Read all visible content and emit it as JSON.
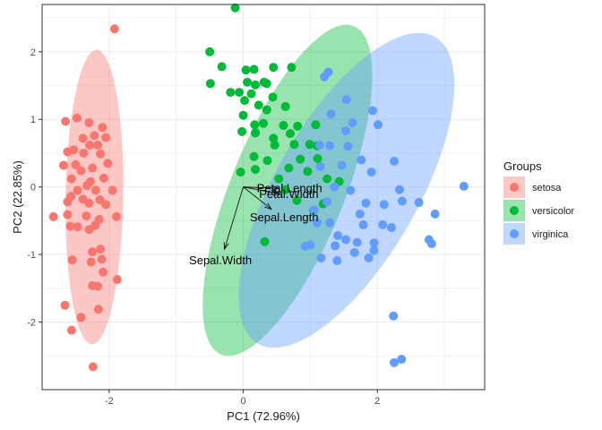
{
  "chart_data": {
    "type": "scatter",
    "xlabel": "PC1 (72.96%)",
    "ylabel": "PC2 (22.85%)",
    "xlim": [
      -3.0,
      3.6
    ],
    "ylim": [
      -3.0,
      2.7
    ],
    "xticks": [
      -2,
      0,
      2
    ],
    "yticks": [
      -2,
      -1,
      0,
      1,
      2
    ],
    "grid": true,
    "legend": {
      "title": "Groups",
      "placement": "right"
    },
    "series": [
      {
        "name": "setosa",
        "color": "#F8766D",
        "ellipse": {
          "cx": -2.22,
          "cy": -0.15,
          "rx": 0.43,
          "ry": 2.18,
          "angle": 0.9
        },
        "points": [
          [
            -1.92,
            2.34
          ],
          [
            -2.48,
            1.02
          ],
          [
            -2.65,
            0.97
          ],
          [
            -2.3,
            0.95
          ],
          [
            -2.1,
            0.88
          ],
          [
            -2.22,
            0.76
          ],
          [
            -2.39,
            0.72
          ],
          [
            -2.05,
            0.73
          ],
          [
            -2.17,
            0.62
          ],
          [
            -2.29,
            0.62
          ],
          [
            -2.53,
            0.55
          ],
          [
            -2.38,
            0.5
          ],
          [
            -2.62,
            0.52
          ],
          [
            -2.13,
            0.49
          ],
          [
            -2.68,
            0.32
          ],
          [
            -2.5,
            0.33
          ],
          [
            -2.02,
            0.35
          ],
          [
            -2.25,
            0.28
          ],
          [
            -2.42,
            0.24
          ],
          [
            -2.56,
            0.12
          ],
          [
            -2.08,
            0.13
          ],
          [
            -2.28,
            0.08
          ],
          [
            -2.33,
            0.02
          ],
          [
            -2.47,
            -0.05
          ],
          [
            -2.2,
            -0.05
          ],
          [
            -1.95,
            -0.05
          ],
          [
            -2.57,
            -0.14
          ],
          [
            -2.39,
            -0.18
          ],
          [
            -2.14,
            -0.19
          ],
          [
            -2.62,
            -0.22
          ],
          [
            -2.3,
            -0.24
          ],
          [
            -2.05,
            -0.26
          ],
          [
            -2.83,
            -0.44
          ],
          [
            -2.62,
            -0.41
          ],
          [
            -2.34,
            -0.43
          ],
          [
            -2.15,
            -0.48
          ],
          [
            -1.89,
            -0.44
          ],
          [
            -2.47,
            -0.59
          ],
          [
            -2.58,
            -0.58
          ],
          [
            -2.21,
            -0.57
          ],
          [
            -2.3,
            -0.63
          ],
          [
            -2.13,
            -0.92
          ],
          [
            -2.25,
            -0.96
          ],
          [
            -2.11,
            -1.07
          ],
          [
            -2.55,
            -1.08
          ],
          [
            -2.27,
            -1.11
          ],
          [
            -2.09,
            -1.26
          ],
          [
            -1.88,
            -1.37
          ],
          [
            -2.25,
            -1.46
          ],
          [
            -2.17,
            -1.47
          ],
          [
            -2.66,
            -1.75
          ],
          [
            -2.16,
            -1.81
          ],
          [
            -2.42,
            -1.93
          ],
          [
            -2.56,
            -2.12
          ],
          [
            -2.24,
            -2.66
          ]
        ]
      },
      {
        "name": "versicolor",
        "color": "#00BA38",
        "ellipse": {
          "cx": 0.66,
          "cy": -0.05,
          "rx": 0.85,
          "ry": 2.62,
          "angle": 22
        },
        "points": [
          [
            -0.12,
            2.65
          ],
          [
            -0.5,
            2.0
          ],
          [
            -0.32,
            1.78
          ],
          [
            0.04,
            1.73
          ],
          [
            0.16,
            1.74
          ],
          [
            0.45,
            1.77
          ],
          [
            0.72,
            1.77
          ],
          [
            -0.49,
            1.53
          ],
          [
            0.06,
            1.55
          ],
          [
            0.31,
            1.55
          ],
          [
            -0.19,
            1.4
          ],
          [
            -0.06,
            1.4
          ],
          [
            0.12,
            1.38
          ],
          [
            0.18,
            1.51
          ],
          [
            0.35,
            1.53
          ],
          [
            0.02,
            1.28
          ],
          [
            0.23,
            1.21
          ],
          [
            0.44,
            1.33
          ],
          [
            0.35,
            1.14
          ],
          [
            0.63,
            1.19
          ],
          [
            0.0,
            1.06
          ],
          [
            0.17,
            0.92
          ],
          [
            0.3,
            0.94
          ],
          [
            0.6,
            0.91
          ],
          [
            0.81,
            0.9
          ],
          [
            1.08,
            0.92
          ],
          [
            0.18,
            0.8
          ],
          [
            0.45,
            0.72
          ],
          [
            0.7,
            0.79
          ],
          [
            -0.02,
            0.82
          ],
          [
            0.47,
            0.62
          ],
          [
            0.76,
            0.63
          ],
          [
            0.99,
            0.63
          ],
          [
            1.1,
            0.61
          ],
          [
            0.16,
            0.45
          ],
          [
            0.36,
            0.39
          ],
          [
            0.85,
            0.41
          ],
          [
            1.11,
            0.42
          ],
          [
            -0.04,
            0.22
          ],
          [
            0.18,
            0.26
          ],
          [
            0.68,
            0.28
          ],
          [
            0.96,
            0.23
          ],
          [
            0.53,
            0.12
          ],
          [
            0.63,
            -0.04
          ],
          [
            1.25,
            0.12
          ],
          [
            1.43,
            0.08
          ],
          [
            0.8,
            -0.2
          ],
          [
            1.19,
            -0.25
          ],
          [
            1.05,
            -0.35
          ],
          [
            0.32,
            -0.81
          ]
        ]
      },
      {
        "name": "virginica",
        "color": "#619CFF",
        "ellipse": {
          "cx": 1.54,
          "cy": -0.05,
          "rx": 1.06,
          "ry": 2.62,
          "angle": 30
        },
        "points": [
          [
            1.27,
            1.7
          ],
          [
            1.21,
            1.63
          ],
          [
            1.54,
            1.29
          ],
          [
            1.93,
            1.13
          ],
          [
            1.31,
            1.08
          ],
          [
            1.63,
            0.95
          ],
          [
            2.01,
            0.92
          ],
          [
            1.53,
            0.83
          ],
          [
            1.14,
            0.62
          ],
          [
            1.56,
            0.6
          ],
          [
            1.29,
            0.61
          ],
          [
            1.76,
            0.4
          ],
          [
            1.91,
            0.22
          ],
          [
            1.15,
            0.3
          ],
          [
            1.47,
            0.32
          ],
          [
            2.25,
            0.38
          ],
          [
            3.29,
            0.01
          ],
          [
            1.36,
            0.0
          ],
          [
            1.6,
            -0.05
          ],
          [
            2.33,
            -0.04
          ],
          [
            1.25,
            -0.22
          ],
          [
            1.83,
            -0.24
          ],
          [
            2.37,
            -0.21
          ],
          [
            2.1,
            -0.26
          ],
          [
            2.62,
            -0.23
          ],
          [
            2.86,
            -0.4
          ],
          [
            1.06,
            -0.34
          ],
          [
            1.74,
            -0.4
          ],
          [
            1.29,
            -0.53
          ],
          [
            1.1,
            -0.53
          ],
          [
            1.79,
            -0.56
          ],
          [
            2.08,
            -0.56
          ],
          [
            2.21,
            -0.6
          ],
          [
            1.41,
            -0.72
          ],
          [
            1.53,
            -0.78
          ],
          [
            1.7,
            -0.82
          ],
          [
            1.95,
            -0.83
          ],
          [
            2.77,
            -0.78
          ],
          [
            2.81,
            -0.84
          ],
          [
            1.0,
            -0.86
          ],
          [
            1.37,
            -0.87
          ],
          [
            1.66,
            -0.97
          ],
          [
            1.95,
            -0.94
          ],
          [
            1.16,
            -1.05
          ],
          [
            1.4,
            -1.09
          ],
          [
            1.87,
            -1.05
          ],
          [
            2.24,
            -1.91
          ],
          [
            2.25,
            -2.6
          ],
          [
            2.36,
            -2.55
          ],
          [
            0.92,
            -0.88
          ]
        ]
      }
    ],
    "arrows": [
      {
        "label": "Petal.Length",
        "x": 0.52,
        "y": -0.02
      },
      {
        "label": "Petal.Width",
        "x": 0.54,
        "y": -0.1
      },
      {
        "label": "Sepal.Length",
        "x": 0.42,
        "y": -0.33
      },
      {
        "label": "Sepal.Width",
        "x": -0.28,
        "y": -0.92
      }
    ],
    "arrow_labels": [
      {
        "text": "Petal.Length",
        "x": 0.69,
        "y": -0.03
      },
      {
        "text": "Petal.Width",
        "x": 0.68,
        "y": -0.12
      },
      {
        "text": "Sepal.Length",
        "x": 0.61,
        "y": -0.46
      },
      {
        "text": "Sepal.Width",
        "x": -0.34,
        "y": -1.1
      }
    ]
  }
}
